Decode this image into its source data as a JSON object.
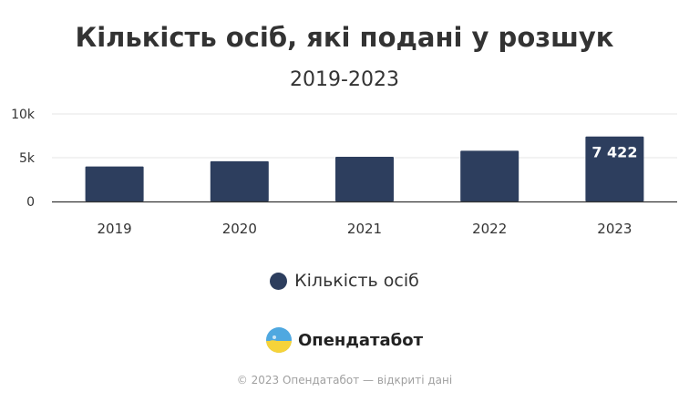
{
  "chart_data": {
    "type": "bar",
    "title": "Кількість осіб, які подані у розшук",
    "subtitle": "2019-2023",
    "categories": [
      "2019",
      "2020",
      "2021",
      "2022",
      "2023"
    ],
    "series": [
      {
        "name": "Кількість осіб",
        "values": [
          4000,
          4600,
          5100,
          5800,
          7422
        ],
        "color": "#2d3e5e"
      }
    ],
    "data_labels": [
      null,
      null,
      null,
      null,
      "7 422"
    ],
    "y_ticks": [
      0,
      5000,
      10000
    ],
    "y_tick_labels": [
      "0",
      "5k",
      "10k"
    ],
    "ylim": [
      0,
      10000
    ],
    "grid": true,
    "legend_position": "bottom"
  },
  "brand": {
    "name": "Опендатабот",
    "logo_icon": "opendatabot-logo-icon"
  },
  "footer": {
    "text": "© 2023 Опендатабот — відкриті дані"
  },
  "colors": {
    "bar": "#2d3e5e",
    "grid": "#e6e6e6",
    "axis": "#333333",
    "label_text": "#ffffff"
  }
}
